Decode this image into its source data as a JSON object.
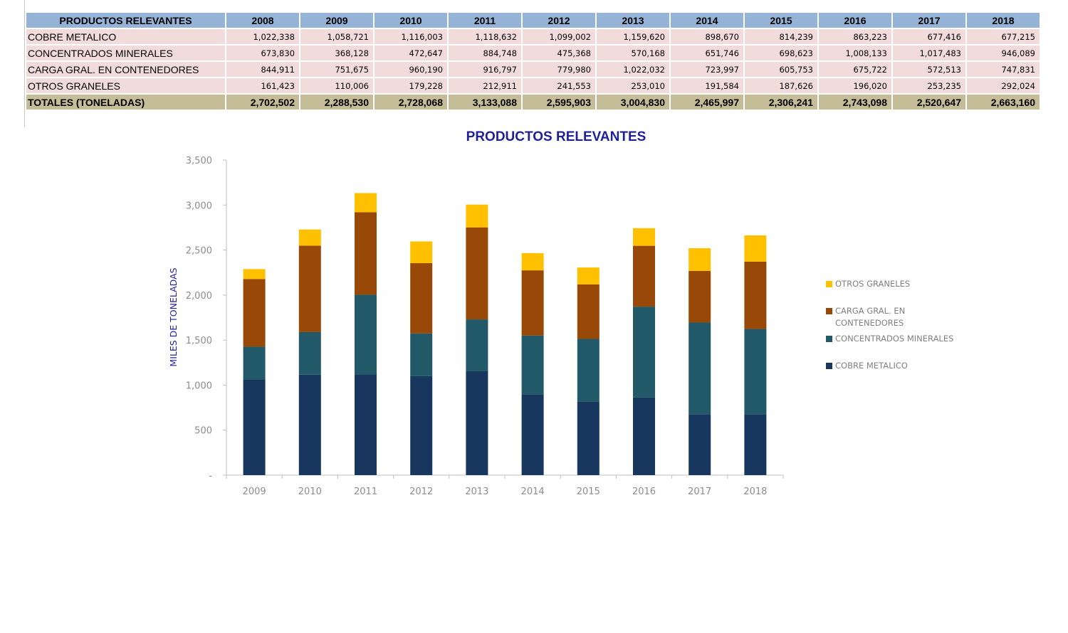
{
  "table": {
    "header_label": "PRODUCTOS RELEVANTES",
    "years": [
      "2008",
      "2009",
      "2010",
      "2011",
      "2012",
      "2013",
      "2014",
      "2015",
      "2016",
      "2017",
      "2018"
    ],
    "rows": [
      {
        "label": "COBRE METALICO",
        "values": [
          "1,022,338",
          "1,058,721",
          "1,116,003",
          "1,118,632",
          "1,099,002",
          "1,159,620",
          "898,670",
          "814,239",
          "863,223",
          "677,416",
          "677,215"
        ]
      },
      {
        "label": "CONCENTRADOS MINERALES",
        "values": [
          "673,830",
          "368,128",
          "472,647",
          "884,748",
          "475,368",
          "570,168",
          "651,746",
          "698,623",
          "1,008,133",
          "1,017,483",
          "946,089"
        ]
      },
      {
        "label": "CARGA GRAL. EN  CONTENEDORES",
        "values": [
          "844,911",
          "751,675",
          "960,190",
          "916,797",
          "779,980",
          "1,022,032",
          "723,997",
          "605,753",
          "675,722",
          "572,513",
          "747,831"
        ]
      },
      {
        "label": "OTROS GRANELES",
        "values": [
          "161,423",
          "110,006",
          "179,228",
          "212,911",
          "241,553",
          "253,010",
          "191,584",
          "187,626",
          "196,020",
          "253,235",
          "292,024"
        ]
      }
    ],
    "total_label": "TOTALES (TONELADAS)",
    "totals": [
      "2,702,502",
      "2,288,530",
      "2,728,068",
      "3,133,088",
      "2,595,903",
      "3,004,830",
      "2,465,997",
      "2,306,241",
      "2,743,098",
      "2,520,647",
      "2,663,160"
    ]
  },
  "chart_data": {
    "type": "bar",
    "stacked": true,
    "title": "PRODUCTOS RELEVANTES",
    "ylabel": "MILES DE TONELADAS",
    "xlabel": "",
    "ylim": [
      0,
      3500
    ],
    "yticks": [
      0,
      500,
      1000,
      1500,
      2000,
      2500,
      3000,
      3500
    ],
    "ytick_labels": [
      "-",
      "500",
      "1,000",
      "1,500",
      "2,000",
      "2,500",
      "3,000",
      "3,500"
    ],
    "categories": [
      "2009",
      "2010",
      "2011",
      "2012",
      "2013",
      "2014",
      "2015",
      "2016",
      "2017",
      "2018"
    ],
    "grid": false,
    "legend_position": "right",
    "series": [
      {
        "name": "COBRE METALICO",
        "color": "#17375e",
        "values": [
          1058.721,
          1116.003,
          1118.632,
          1099.002,
          1159.62,
          898.67,
          814.239,
          863.223,
          677.416,
          677.215
        ]
      },
      {
        "name": "CONCENTRADOS MINERALES",
        "color": "#215968",
        "values": [
          368.128,
          472.647,
          884.748,
          475.368,
          570.168,
          651.746,
          698.623,
          1008.133,
          1017.483,
          946.089
        ]
      },
      {
        "name": "CARGA GRAL. EN CONTENEDORES",
        "color": "#984807",
        "values": [
          751.675,
          960.19,
          916.797,
          779.98,
          1022.032,
          723.997,
          605.753,
          675.722,
          572.513,
          747.831
        ]
      },
      {
        "name": "OTROS GRANELES",
        "color": "#ffc000",
        "values": [
          110.006,
          179.228,
          212.911,
          241.553,
          253.01,
          191.584,
          187.626,
          196.02,
          253.235,
          292.024
        ]
      }
    ],
    "colors": {
      "title": "#1f1f99",
      "ylabel": "#1f1f99",
      "tick": "#8c8c8c",
      "legend_text": "#7f7f7f",
      "axis": "#bfbfbf"
    }
  }
}
